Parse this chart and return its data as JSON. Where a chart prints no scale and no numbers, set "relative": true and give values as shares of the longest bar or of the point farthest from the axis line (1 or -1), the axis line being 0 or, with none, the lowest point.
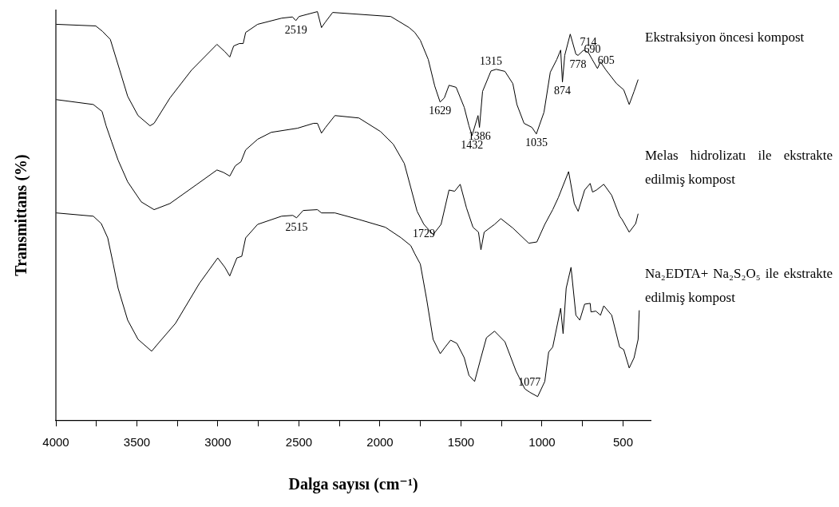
{
  "chart_data": {
    "type": "line",
    "relative": true,
    "xlabel": "Dalga sayısı (cm⁻¹)",
    "ylabel": "Transmittans (%)",
    "xlim": [
      4000,
      330
    ],
    "xticks": [
      4000,
      {
        "value": 3750,
        "label": null
      },
      3500,
      {
        "value": 3250,
        "label": null
      },
      3000,
      {
        "value": 2750,
        "label": null
      },
      2500,
      {
        "value": 2250,
        "label": null
      },
      2000,
      {
        "value": 1750,
        "label": null
      },
      1500,
      {
        "value": 1250,
        "label": null
      },
      1000,
      {
        "value": 750,
        "label": null
      },
      500
    ],
    "grid": false,
    "legend": false,
    "marker": "none",
    "line_style": "solid",
    "tick_labels": "x",
    "series": [
      {
        "name": "Ekstraksiyon öncesi kompost",
        "color": "#000000",
        "x": [
          3998,
          3754,
          3713,
          3664,
          3606,
          3557,
          3493,
          3419,
          3394,
          3296,
          3163,
          3006,
          2957,
          2927,
          2903,
          2868,
          2844,
          2829,
          2755,
          2607,
          2540,
          2519,
          2500,
          2386,
          2361,
          2336,
          2292,
          1933,
          1820,
          1785,
          1751,
          1702,
          1662,
          1629,
          1603,
          1574,
          1530,
          1480,
          1451,
          1432,
          1395,
          1386,
          1367,
          1315,
          1283,
          1229,
          1180,
          1155,
          1111,
          1062,
          1035,
          988,
          949,
          909,
          885,
          874,
          860,
          826,
          791,
          778,
          743,
          714,
          690,
          658,
          639,
          605,
          540,
          496,
          462,
          432,
          407
        ],
        "values": [
          0.969,
          0.965,
          0.952,
          0.932,
          0.857,
          0.793,
          0.746,
          0.721,
          0.727,
          0.789,
          0.857,
          0.92,
          0.902,
          0.889,
          0.916,
          0.922,
          0.922,
          0.949,
          0.969,
          0.984,
          0.987,
          0.978,
          0.988,
          1,
          0.961,
          0.975,
          0.998,
          0.988,
          0.961,
          0.949,
          0.93,
          0.883,
          0.818,
          0.779,
          0.789,
          0.82,
          0.815,
          0.766,
          0.721,
          0.697,
          0.746,
          0.717,
          0.805,
          0.855,
          0.859,
          0.854,
          0.824,
          0.773,
          0.727,
          0.717,
          0.701,
          0.754,
          0.852,
          0.883,
          0.906,
          0.828,
          0.893,
          0.945,
          0.896,
          0.893,
          0.906,
          0.9,
          0.883,
          0.861,
          0.877,
          0.857,
          0.824,
          0.809,
          0.773,
          0.805,
          0.834
        ]
      },
      {
        "name": "Melas hidrolizatı ile ekstrakte edilmiş kompost",
        "color": "#000000",
        "x": [
          3998,
          3769,
          3715,
          3690,
          3656,
          3616,
          3557,
          3473,
          3394,
          3296,
          3129,
          3006,
          2966,
          2927,
          2893,
          2858,
          2829,
          2755,
          2671,
          2509,
          2410,
          2386,
          2361,
          2336,
          2278,
          2130,
          1997,
          1918,
          1850,
          1810,
          1771,
          1729,
          1672,
          1623,
          1574,
          1539,
          1505,
          1466,
          1426,
          1392,
          1377,
          1357,
          1293,
          1254,
          1180,
          1082,
          1032,
          983,
          934,
          900,
          836,
          801,
          777,
          737,
          703,
          688,
          664,
          619,
          570,
          521,
          506,
          462,
          422,
          407
        ],
        "values": [
          0.785,
          0.773,
          0.756,
          0.721,
          0.682,
          0.637,
          0.584,
          0.535,
          0.516,
          0.531,
          0.578,
          0.613,
          0.607,
          0.598,
          0.623,
          0.633,
          0.662,
          0.688,
          0.705,
          0.715,
          0.727,
          0.727,
          0.703,
          0.717,
          0.746,
          0.74,
          0.707,
          0.676,
          0.629,
          0.57,
          0.512,
          0.48,
          0.455,
          0.48,
          0.564,
          0.561,
          0.578,
          0.52,
          0.473,
          0.461,
          0.418,
          0.461,
          0.48,
          0.494,
          0.471,
          0.434,
          0.437,
          0.48,
          0.516,
          0.545,
          0.609,
          0.531,
          0.512,
          0.564,
          0.58,
          0.559,
          0.564,
          0.578,
          0.551,
          0.5,
          0.492,
          0.461,
          0.482,
          0.506
        ]
      },
      {
        "name": "Na₂EDTA+ Na₂S₂O₅ ile ekstrakte edilmiş kompost",
        "color": "#000000",
        "x": [
          3998,
          3769,
          3720,
          3680,
          3646,
          3616,
          3557,
          3493,
          3409,
          3360,
          3262,
          3114,
          3001,
          2957,
          2927,
          2883,
          2853,
          2829,
          2755,
          2607,
          2538,
          2515,
          2474,
          2386,
          2361,
          2278,
          2130,
          1967,
          1869,
          1810,
          1785,
          1751,
          1712,
          1672,
          1628,
          1598,
          1564,
          1525,
          1480,
          1451,
          1416,
          1377,
          1343,
          1293,
          1229,
          1160,
          1106,
          1077,
          1027,
          983,
          959,
          934,
          885,
          870,
          851,
          821,
          791,
          767,
          737,
          703,
          698,
          668,
          639,
          619,
          570,
          521,
          496,
          462,
          432,
          407,
          400
        ],
        "values": [
          0.508,
          0.5,
          0.482,
          0.447,
          0.383,
          0.324,
          0.246,
          0.199,
          0.17,
          0.193,
          0.238,
          0.336,
          0.398,
          0.375,
          0.354,
          0.398,
          0.402,
          0.447,
          0.48,
          0.5,
          0.502,
          0.496,
          0.514,
          0.516,
          0.508,
          0.508,
          0.492,
          0.473,
          0.447,
          0.428,
          0.408,
          0.383,
          0.297,
          0.199,
          0.164,
          0.18,
          0.197,
          0.189,
          0.154,
          0.111,
          0.096,
          0.154,
          0.203,
          0.219,
          0.193,
          0.121,
          0.078,
          0.07,
          0.059,
          0.096,
          0.168,
          0.18,
          0.275,
          0.213,
          0.324,
          0.375,
          0.258,
          0.246,
          0.285,
          0.287,
          0.266,
          0.268,
          0.258,
          0.281,
          0.258,
          0.18,
          0.174,
          0.129,
          0.154,
          0.199,
          0.27
        ]
      }
    ],
    "annotations": [
      {
        "text": "2519",
        "x": 2519,
        "y": 0.978
      },
      {
        "text": "1629",
        "x": 1629,
        "y": 0.779
      },
      {
        "text": "1432",
        "x": 1432,
        "y": 0.697
      },
      {
        "text": "1386",
        "x": 1386,
        "y": 0.717
      },
      {
        "text": "1315",
        "x": 1315,
        "y": 0.855
      },
      {
        "text": "1035",
        "x": 1035,
        "y": 0.701
      },
      {
        "text": "874",
        "x": 874,
        "y": 0.828
      },
      {
        "text": "778",
        "x": 778,
        "y": 0.893
      },
      {
        "text": "714",
        "x": 714,
        "y": 0.9
      },
      {
        "text": "690",
        "x": 690,
        "y": 0.883
      },
      {
        "text": "605",
        "x": 605,
        "y": 0.857
      },
      {
        "text": "1729",
        "x": 1729,
        "y": 0.48
      },
      {
        "text": "2515",
        "x": 2515,
        "y": 0.496
      },
      {
        "text": "1077",
        "x": 1077,
        "y": 0.07
      }
    ]
  }
}
